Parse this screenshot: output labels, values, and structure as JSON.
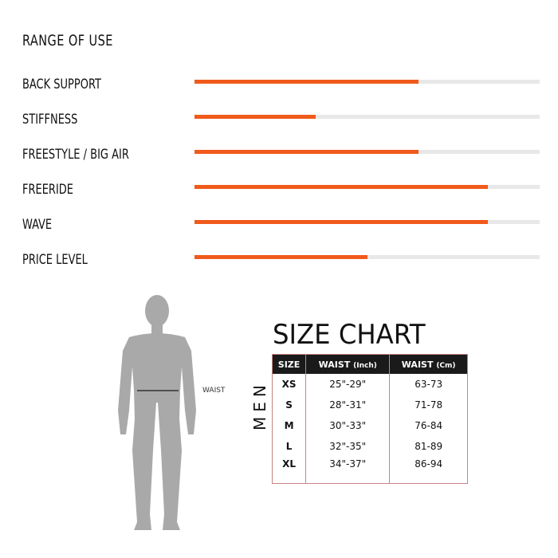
{
  "heading": "RANGE OF USE",
  "colors": {
    "fill": "#f05a1a",
    "track": "#e8e8e8"
  },
  "chart_data": {
    "type": "bar",
    "orientation": "horizontal",
    "categories": [
      "BACK SUPPORT",
      "STIFFNESS",
      "FREESTYLE / BIG AIR",
      "FREERIDE",
      "WAVE",
      "PRICE LEVEL"
    ],
    "values": [
      0.65,
      0.35,
      0.65,
      0.85,
      0.85,
      0.5
    ],
    "xlim": [
      0,
      1
    ],
    "title": "RANGE OF USE"
  },
  "figure": {
    "waist_label": "WAIST"
  },
  "size_chart": {
    "title": "SIZE CHART",
    "side_label": "MEN",
    "headers": [
      "SIZE",
      "WAIST",
      "(Inch)",
      "WAIST",
      "(Cm)"
    ],
    "rows": [
      [
        "XS",
        "25\"-29\"",
        "63-73"
      ],
      [
        "S",
        "28\"-31\"",
        "71-78"
      ],
      [
        "M",
        "30\"-33\"",
        "76-84"
      ],
      [
        "L",
        "32\"-35\"",
        "81-89"
      ],
      [
        "XL",
        "34\"-37\"",
        "86-94"
      ]
    ]
  }
}
